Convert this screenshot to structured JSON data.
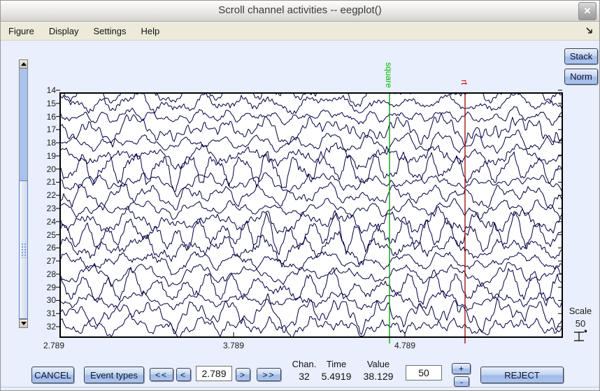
{
  "window": {
    "title": "Scroll channel activities -- eegplot()",
    "close": "✕"
  },
  "menu": {
    "items": [
      "Figure",
      "Display",
      "Settings",
      "Help"
    ]
  },
  "side_buttons": {
    "stack": "Stack",
    "norm": "Norm"
  },
  "plot": {
    "channels": [
      14,
      15,
      16,
      17,
      18,
      19,
      20,
      21,
      22,
      23,
      24,
      25,
      26,
      27,
      28,
      29,
      30,
      31,
      32
    ],
    "x_ticks": [
      {
        "label": "2.789",
        "x": 76
      },
      {
        "label": "3.789",
        "x": 333
      },
      {
        "label": "4.789",
        "x": 578
      }
    ],
    "events": [
      {
        "label": "square",
        "x": 556,
        "line_color": "#009900",
        "label_color": "#00bb00"
      },
      {
        "label": "rt",
        "x": 664,
        "line_color": "#990000",
        "label_color": "#cc0000"
      }
    ],
    "trace_color": "#000042",
    "seed": 1337
  },
  "scale_widget": {
    "label": "Scale",
    "value": "50"
  },
  "controls": {
    "cancel": "CANCEL",
    "event_types": "Event types",
    "rewind": "<<",
    "back": "<",
    "time_field": "2.789",
    "forward": ">",
    "fast_forward": ">>",
    "readout": {
      "chan_label": "Chan.",
      "time_label": "Time",
      "value_label": "Value",
      "chan": "32",
      "time": "5.4919",
      "value": "38.129"
    },
    "scale_field": "50",
    "increase": "+",
    "decrease": "-",
    "reject": "REJECT"
  }
}
